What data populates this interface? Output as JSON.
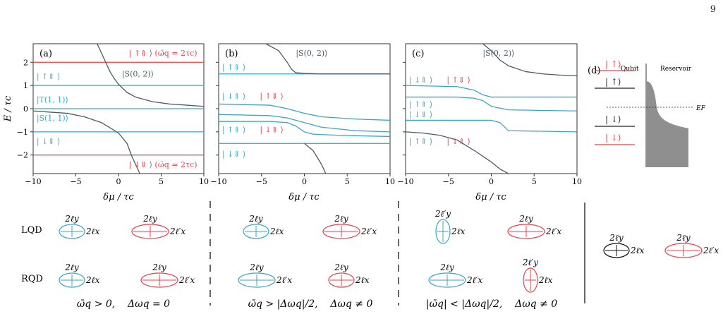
{
  "page_number": "9",
  "colors": {
    "blue": "#3aa6c4",
    "red": "#e8424d",
    "dark": "#4a5a6a",
    "gray": "#8f8f8f"
  },
  "y_axis_label": "E / τc",
  "x_axis_label": "δμ / τc",
  "chart_data": [
    {
      "type": "line",
      "panel": "(a)",
      "xlim": [
        -10,
        10
      ],
      "ylim": [
        -2.8,
        2.8
      ],
      "xticks": [
        "−10",
        "−5",
        "0",
        "5",
        "10"
      ],
      "yticks": [
        "−2",
        "−1",
        "0",
        "1",
        "2"
      ],
      "series": [
        {
          "color": "red",
          "x": [
            -10,
            -3,
            -1.5,
            10
          ],
          "y": [
            2,
            2,
            2,
            2
          ]
        },
        {
          "color": "blue",
          "x": [
            -10,
            -1,
            0,
            10
          ],
          "y": [
            1,
            1,
            1,
            1
          ]
        },
        {
          "color": "blue",
          "x": [
            -10,
            10
          ],
          "y": [
            0,
            0
          ]
        },
        {
          "color": "blue",
          "x": [
            -10,
            -2,
            -0.5,
            0,
            10
          ],
          "y": [
            -1,
            -1,
            -1,
            -1,
            -1
          ]
        },
        {
          "color": "red",
          "x": [
            -10,
            1,
            2,
            10
          ],
          "y": [
            -2,
            -2,
            -2,
            -2
          ]
        },
        {
          "color": "dark",
          "x": [
            -2.5,
            -2,
            -1.5,
            -1,
            -0.5,
            0,
            1,
            2,
            4,
            6,
            8,
            10
          ],
          "y": [
            2.8,
            2.4,
            2.0,
            1.6,
            1.3,
            1.05,
            0.7,
            0.5,
            0.3,
            0.2,
            0.15,
            0.1
          ]
        },
        {
          "color": "dark",
          "x": [
            -10,
            -8,
            -6,
            -4,
            -2,
            0,
            1,
            1.5,
            2,
            2.5
          ],
          "y": [
            -0.1,
            -0.15,
            -0.2,
            -0.35,
            -0.6,
            -1.05,
            -1.5,
            -2.0,
            -2.4,
            -2.8
          ]
        }
      ],
      "annotations": [
        {
          "text": "| ↑⇑ ⟩ (ω̄q = 2τc)",
          "color": "red",
          "x": 1.2,
          "y": 2.4
        },
        {
          "text": "| ↑⇑ ⟩",
          "color": "blue",
          "x": -9.6,
          "y": 1.4
        },
        {
          "text": "|S(0, 2)⟩",
          "color": "dark",
          "x": 0.4,
          "y": 1.5
        },
        {
          "text": "|T(1, 1)⟩",
          "color": "blue",
          "x": -9.6,
          "y": 0.4
        },
        {
          "text": "|S(1, 1)⟩",
          "color": "blue",
          "x": -9.6,
          "y": -0.4
        },
        {
          "text": "| ↓⇓ ⟩",
          "color": "blue",
          "x": -9.6,
          "y": -1.4
        },
        {
          "text": "| ↓⇓ ⟩ (ω̄q = 2τc)",
          "color": "red",
          "x": 1.2,
          "y": -2.4
        }
      ]
    },
    {
      "type": "line",
      "panel": "(b)",
      "xlim": [
        -10,
        10
      ],
      "ylim": [
        -2.8,
        2.8
      ],
      "xticks": [
        "−10",
        "−5",
        "0",
        "5",
        "10"
      ],
      "series": [
        {
          "color": "blue",
          "x": [
            -10,
            10
          ],
          "y": [
            1.5,
            1.5
          ]
        },
        {
          "color": "blue",
          "x": [
            -10,
            -4,
            -2,
            -1,
            0,
            2,
            6,
            10
          ],
          "y": [
            0.2,
            0.15,
            0.0,
            -0.1,
            -0.2,
            -0.35,
            -0.45,
            -0.5
          ]
        },
        {
          "color": "blue",
          "x": [
            -10,
            -4,
            -2,
            0,
            2,
            6,
            10
          ],
          "y": [
            -0.25,
            -0.3,
            -0.4,
            -0.6,
            -0.8,
            -0.95,
            -1.0
          ]
        },
        {
          "color": "blue",
          "x": [
            -10,
            10
          ],
          "y": [
            -1.5,
            -1.5
          ]
        },
        {
          "color": "dark",
          "x": [
            -4.5,
            -3,
            -2,
            -1.5,
            -1,
            0,
            2,
            5,
            10
          ],
          "y": [
            2.8,
            2.5,
            2.0,
            1.7,
            1.55,
            1.52,
            1.5,
            1.5,
            1.5
          ]
        },
        {
          "color": "blue",
          "x": [
            -10,
            -4,
            -2,
            -1,
            0,
            1,
            4,
            10
          ],
          "y": [
            -0.55,
            -0.55,
            -0.6,
            -0.75,
            -1.0,
            -1.1,
            -1.15,
            -1.2
          ]
        },
        {
          "color": "dark",
          "x": [
            0,
            1,
            2,
            2.5
          ],
          "y": [
            -1.5,
            -1.8,
            -2.4,
            -2.8
          ]
        }
      ],
      "annotations": [
        {
          "text": "|S(0, 2)⟩",
          "color": "dark",
          "x": -1.0,
          "y": 2.4
        },
        {
          "text": "| ↑⇑ ⟩",
          "color": "blue",
          "x": -9.6,
          "y": 1.8
        },
        {
          "text": "| ↓⇑ ⟩",
          "color": "blue",
          "x": -9.6,
          "y": 0.55
        },
        {
          "text": "| ↑⇓ ⟩",
          "color": "red",
          "x": -5.2,
          "y": 0.55
        },
        {
          "text": "| ↑⇑ ⟩",
          "color": "blue",
          "x": -9.6,
          "y": -0.9
        },
        {
          "text": "| ↓⇑ ⟩",
          "color": "red",
          "x": -5.2,
          "y": -0.9
        },
        {
          "text": "| ↓⇓ ⟩",
          "color": "blue",
          "x": -9.6,
          "y": -1.95
        }
      ]
    },
    {
      "type": "line",
      "panel": "(c)",
      "xlim": [
        -10,
        10
      ],
      "ylim": [
        -2.8,
        2.8
      ],
      "xticks": [
        "−10",
        "−5",
        "0",
        "5",
        "10"
      ],
      "series": [
        {
          "color": "dark",
          "x": [
            -1,
            0,
            1,
            2,
            4,
            6,
            8,
            10
          ],
          "y": [
            2.8,
            2.5,
            2.1,
            1.85,
            1.6,
            1.5,
            1.45,
            1.42
          ]
        },
        {
          "color": "blue",
          "x": [
            -10,
            -4,
            -2,
            -1,
            0,
            2,
            10
          ],
          "y": [
            1.0,
            0.95,
            0.8,
            0.6,
            0.5,
            0.5,
            0.5
          ]
        },
        {
          "color": "blue",
          "x": [
            -10,
            -4,
            -2,
            -1,
            0,
            2,
            10
          ],
          "y": [
            0.5,
            0.5,
            0.45,
            0.35,
            0.1,
            -0.05,
            -0.1
          ]
        },
        {
          "color": "blue",
          "x": [
            -10,
            -2,
            0,
            1,
            2,
            10
          ],
          "y": [
            -0.5,
            -0.5,
            -0.5,
            -0.6,
            -0.95,
            -1.0
          ]
        },
        {
          "color": "dark",
          "x": [
            -10,
            -8,
            -6,
            -4,
            -2,
            0,
            1,
            2
          ],
          "y": [
            -1.0,
            -1.05,
            -1.15,
            -1.35,
            -1.8,
            -2.3,
            -2.6,
            -2.8
          ]
        }
      ],
      "annotations": [
        {
          "text": "|S(0, 2)⟩",
          "color": "dark",
          "x": -1.0,
          "y": 2.4
        },
        {
          "text": "| ↓⇑ ⟩",
          "color": "blue",
          "x": -9.6,
          "y": 1.25
        },
        {
          "text": "| ↑⇓ ⟩",
          "color": "red",
          "x": -5.2,
          "y": 1.25
        },
        {
          "text": "| ↑⇑ ⟩",
          "color": "blue",
          "x": -9.6,
          "y": 0.2
        },
        {
          "text": "| ↓⇓ ⟩",
          "color": "blue",
          "x": -9.6,
          "y": -0.25
        },
        {
          "text": "| ↑⇑ ⟩",
          "color": "blue",
          "x": -9.6,
          "y": -1.4
        },
        {
          "text": "| ↓⇑ ⟩",
          "color": "red",
          "x": -5.2,
          "y": -1.4
        }
      ]
    }
  ],
  "panel_d": {
    "label": "(d)",
    "qubit_label": "Qubit",
    "reservoir_label": "Reservoir",
    "fermi_label": "EF",
    "levels": [
      "| ↑⟩",
      "| ↑⟩",
      "| ↓⟩",
      "| ↓⟩"
    ]
  },
  "bottom": {
    "row_labels": [
      "LQD",
      "RQD"
    ],
    "dims": {
      "y": "2ℓy",
      "yp": "2ℓ′y",
      "x": "2ℓx",
      "xp": "2ℓ′x"
    },
    "captions": [
      "ω̄q > 0,    Δωq = 0",
      "ω̄q > |Δωq|/2,    Δωq ≠ 0",
      "|ω̄q| < |Δωq|/2,    Δωq ≠ 0"
    ]
  }
}
